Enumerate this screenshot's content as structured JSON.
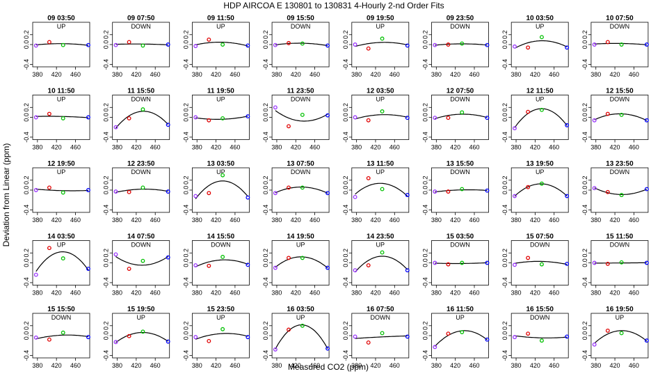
{
  "chart_data": {
    "type": "scatter",
    "title": "HDP   AIRCOA E   130801 to 130831   4-Hourly 2-nd Order Fits",
    "xlabel": "Measured CO2 (ppm)",
    "ylabel": "Deviation from Linear (ppm)",
    "xlim": [
      370,
      490
    ],
    "ylim": [
      -0.45,
      0.45
    ],
    "xticks": [
      "380",
      "420",
      "460"
    ],
    "yticks": [
      "-0.4",
      "0.0",
      "0.2"
    ],
    "standard_x": [
      377,
      405,
      434,
      487
    ],
    "marker_colors": [
      "#9933ff",
      "#e00000",
      "#00c000",
      "#0000ff"
    ],
    "fit_line_color": "#000000",
    "panels": [
      {
        "title": "09 03:50",
        "dir": "UP",
        "y": [
          -0.02,
          0.05,
          -0.01,
          -0.01
        ]
      },
      {
        "title": "09 07:50",
        "dir": "DOWN",
        "y": [
          -0.01,
          0.05,
          -0.02,
          0.0
        ]
      },
      {
        "title": "09 11:50",
        "dir": "UP",
        "y": [
          -0.03,
          0.1,
          0.0,
          -0.02
        ]
      },
      {
        "title": "09 15:50",
        "dir": "DOWN",
        "y": [
          -0.01,
          0.03,
          0.02,
          -0.02
        ]
      },
      {
        "title": "09 19:50",
        "dir": "UP",
        "y": [
          0.0,
          -0.08,
          0.12,
          -0.02
        ]
      },
      {
        "title": "09 23:50",
        "dir": "DOWN",
        "y": [
          -0.01,
          0.0,
          0.02,
          -0.01
        ]
      },
      {
        "title": "10 03:50",
        "dir": "UP",
        "y": [
          -0.04,
          -0.06,
          0.15,
          -0.06
        ]
      },
      {
        "title": "10 07:50",
        "dir": "DOWN",
        "y": [
          0.0,
          0.05,
          0.0,
          0.0
        ]
      },
      {
        "title": "10 11:50",
        "dir": "UP",
        "y": [
          0.0,
          0.07,
          -0.02,
          0.0
        ]
      },
      {
        "title": "11 15:50",
        "dir": "DOWN",
        "y": [
          -0.2,
          -0.02,
          0.16,
          -0.15
        ]
      },
      {
        "title": "11 19:50",
        "dir": "UP",
        "y": [
          0.0,
          -0.06,
          -0.02,
          0.02
        ]
      },
      {
        "title": "11 23:50",
        "dir": "DOWN",
        "y": [
          0.2,
          -0.18,
          0.05,
          0.04
        ]
      },
      {
        "title": "12 03:50",
        "dir": "UP",
        "y": [
          0.0,
          -0.06,
          0.12,
          -0.01
        ]
      },
      {
        "title": "12 07:50",
        "dir": "DOWN",
        "y": [
          -0.01,
          -0.01,
          0.1,
          -0.01
        ]
      },
      {
        "title": "12 11:50",
        "dir": "UP",
        "y": [
          -0.22,
          0.11,
          0.15,
          -0.16
        ]
      },
      {
        "title": "12 15:50",
        "dir": "DOWN",
        "y": [
          -0.06,
          0.07,
          0.05,
          -0.06
        ]
      },
      {
        "title": "12 19:50",
        "dir": "UP",
        "y": [
          0.0,
          0.05,
          -0.05,
          0.0
        ]
      },
      {
        "title": "12 23:50",
        "dir": "DOWN",
        "y": [
          -0.03,
          -0.04,
          0.05,
          -0.03
        ]
      },
      {
        "title": "13 03:50",
        "dir": "UP",
        "y": [
          -0.12,
          -0.06,
          0.3,
          -0.15
        ]
      },
      {
        "title": "13 07:50",
        "dir": "DOWN",
        "y": [
          -0.06,
          0.05,
          0.05,
          -0.06
        ]
      },
      {
        "title": "13 11:50",
        "dir": "UP",
        "y": [
          -0.14,
          0.24,
          0.02,
          -0.1
        ]
      },
      {
        "title": "13 15:50",
        "dir": "DOWN",
        "y": [
          -0.03,
          -0.03,
          0.02,
          -0.01
        ]
      },
      {
        "title": "13 19:50",
        "dir": "UP",
        "y": [
          -0.12,
          0.06,
          0.13,
          -0.12
        ]
      },
      {
        "title": "13 23:50",
        "dir": "DOWN",
        "y": [
          0.04,
          -0.04,
          -0.1,
          0.02
        ]
      },
      {
        "title": "14 03:50",
        "dir": "UP",
        "y": [
          -0.24,
          0.3,
          0.09,
          -0.12
        ]
      },
      {
        "title": "14 07:50",
        "dir": "DOWN",
        "y": [
          0.17,
          -0.12,
          0.04,
          0.11
        ]
      },
      {
        "title": "14 15:50",
        "dir": "DOWN",
        "y": [
          -0.05,
          -0.06,
          0.12,
          -0.04
        ]
      },
      {
        "title": "14 19:50",
        "dir": "UP",
        "y": [
          -0.1,
          0.1,
          0.1,
          -0.1
        ]
      },
      {
        "title": "14 23:50",
        "dir": "UP",
        "y": [
          -0.15,
          -0.05,
          0.21,
          -0.15
        ]
      },
      {
        "title": "15 03:50",
        "dir": "DOWN",
        "y": [
          0.0,
          -0.03,
          0.0,
          0.0
        ]
      },
      {
        "title": "15 07:50",
        "dir": "DOWN",
        "y": [
          -0.04,
          0.1,
          -0.03,
          -0.02
        ]
      },
      {
        "title": "15 11:50",
        "dir": "DOWN",
        "y": [
          0.0,
          -0.02,
          0.01,
          0.0
        ]
      },
      {
        "title": "15 15:50",
        "dir": "DOWN",
        "y": [
          -0.04,
          -0.08,
          0.06,
          -0.03
        ]
      },
      {
        "title": "15 19:50",
        "dir": "UP",
        "y": [
          -0.13,
          -0.01,
          0.08,
          -0.12
        ]
      },
      {
        "title": "15 23:50",
        "dir": "UP",
        "y": [
          -0.03,
          -0.11,
          0.13,
          -0.03
        ]
      },
      {
        "title": "16 03:50",
        "dir": "UP",
        "y": [
          -0.28,
          0.12,
          0.2,
          -0.26
        ]
      },
      {
        "title": "16 07:50",
        "dir": "DOWN",
        "y": [
          -0.02,
          -0.14,
          0.05,
          -0.02
        ]
      },
      {
        "title": "16 11:50",
        "dir": "UP",
        "y": [
          -0.23,
          0.04,
          0.07,
          -0.08
        ]
      },
      {
        "title": "16 15:50",
        "dir": "DOWN",
        "y": [
          -0.03,
          0.04,
          -0.1,
          -0.02
        ]
      },
      {
        "title": "16 19:50",
        "dir": "UP",
        "y": [
          -0.18,
          0.1,
          0.05,
          -0.1
        ]
      }
    ]
  }
}
